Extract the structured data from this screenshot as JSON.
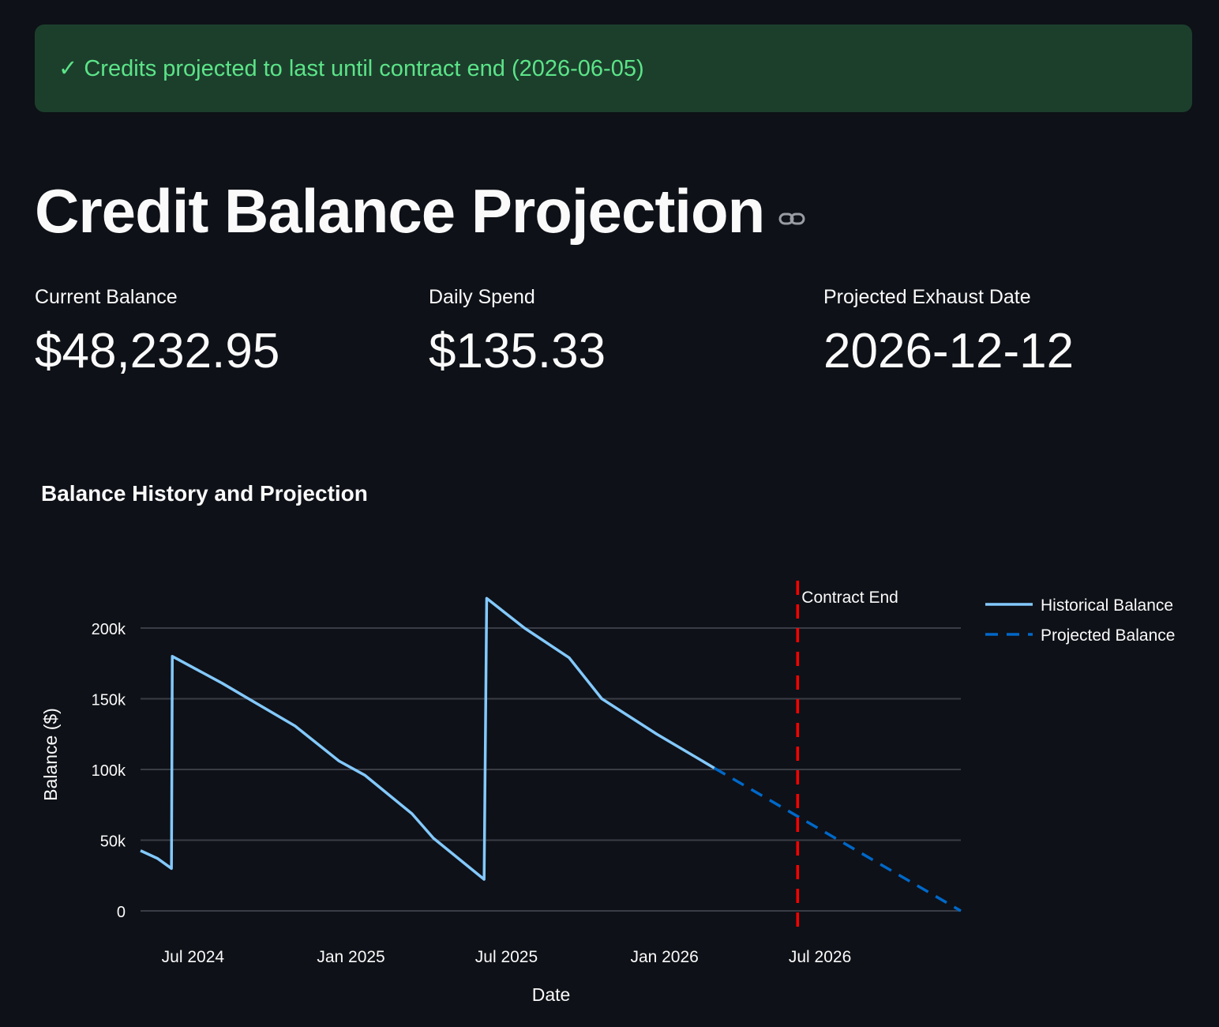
{
  "banner": {
    "icon": "check-icon",
    "text": "✓ Credits projected to last until contract end (2026-06-05)",
    "color": "#5ce488"
  },
  "page": {
    "title": "Credit Balance Projection"
  },
  "metrics": [
    {
      "label": "Current Balance",
      "value": "$48,232.95"
    },
    {
      "label": "Daily Spend",
      "value": "$135.33"
    },
    {
      "label": "Projected Exhaust Date",
      "value": "2026-12-12"
    }
  ],
  "chart_data": {
    "type": "line",
    "title": "Balance History and Projection",
    "xlabel": "Date",
    "ylabel": "Balance ($)",
    "xlim": [
      "2024-05-01",
      "2026-12-12"
    ],
    "ylim": [
      0,
      230000
    ],
    "y_ticks": [
      0,
      50000,
      100000,
      150000,
      200000
    ],
    "y_tick_labels": [
      "0",
      "50k",
      "100k",
      "150k",
      "200k"
    ],
    "x_ticks": [
      "2024-07-01",
      "2025-01-01",
      "2025-07-01",
      "2026-01-01",
      "2026-07-01"
    ],
    "x_tick_labels": [
      "Jul 2024",
      "Jan 2025",
      "Jul 2025",
      "Jan 2026",
      "Jul 2026"
    ],
    "grid": true,
    "legend_position": "right",
    "series": [
      {
        "name": "Historical Balance",
        "style": "solid",
        "color": "#83c9ff",
        "x": [
          "2024-05-01",
          "2024-05-21",
          "2024-06-06",
          "2024-06-07",
          "2024-08-04",
          "2024-09-15",
          "2024-10-28",
          "2024-12-18",
          "2025-01-17",
          "2025-03-13",
          "2025-04-07",
          "2025-06-05",
          "2025-06-08",
          "2025-07-22",
          "2025-09-12",
          "2025-10-20",
          "2025-12-23",
          "2026-02-28"
        ],
        "y": [
          42600,
          37000,
          30000,
          180000,
          161000,
          146000,
          130700,
          106000,
          96000,
          68700,
          51400,
          22300,
          221000,
          200000,
          179000,
          150000,
          125000,
          101000
        ]
      },
      {
        "name": "Projected Balance",
        "style": "dashed",
        "color": "#0068c9",
        "x": [
          "2026-02-28",
          "2026-12-12"
        ],
        "y": [
          101000,
          0
        ]
      }
    ],
    "annotations": [
      {
        "type": "vline",
        "x": "2026-06-05",
        "label": "Contract End",
        "color": "#ff0000",
        "style": "dashed"
      }
    ]
  }
}
